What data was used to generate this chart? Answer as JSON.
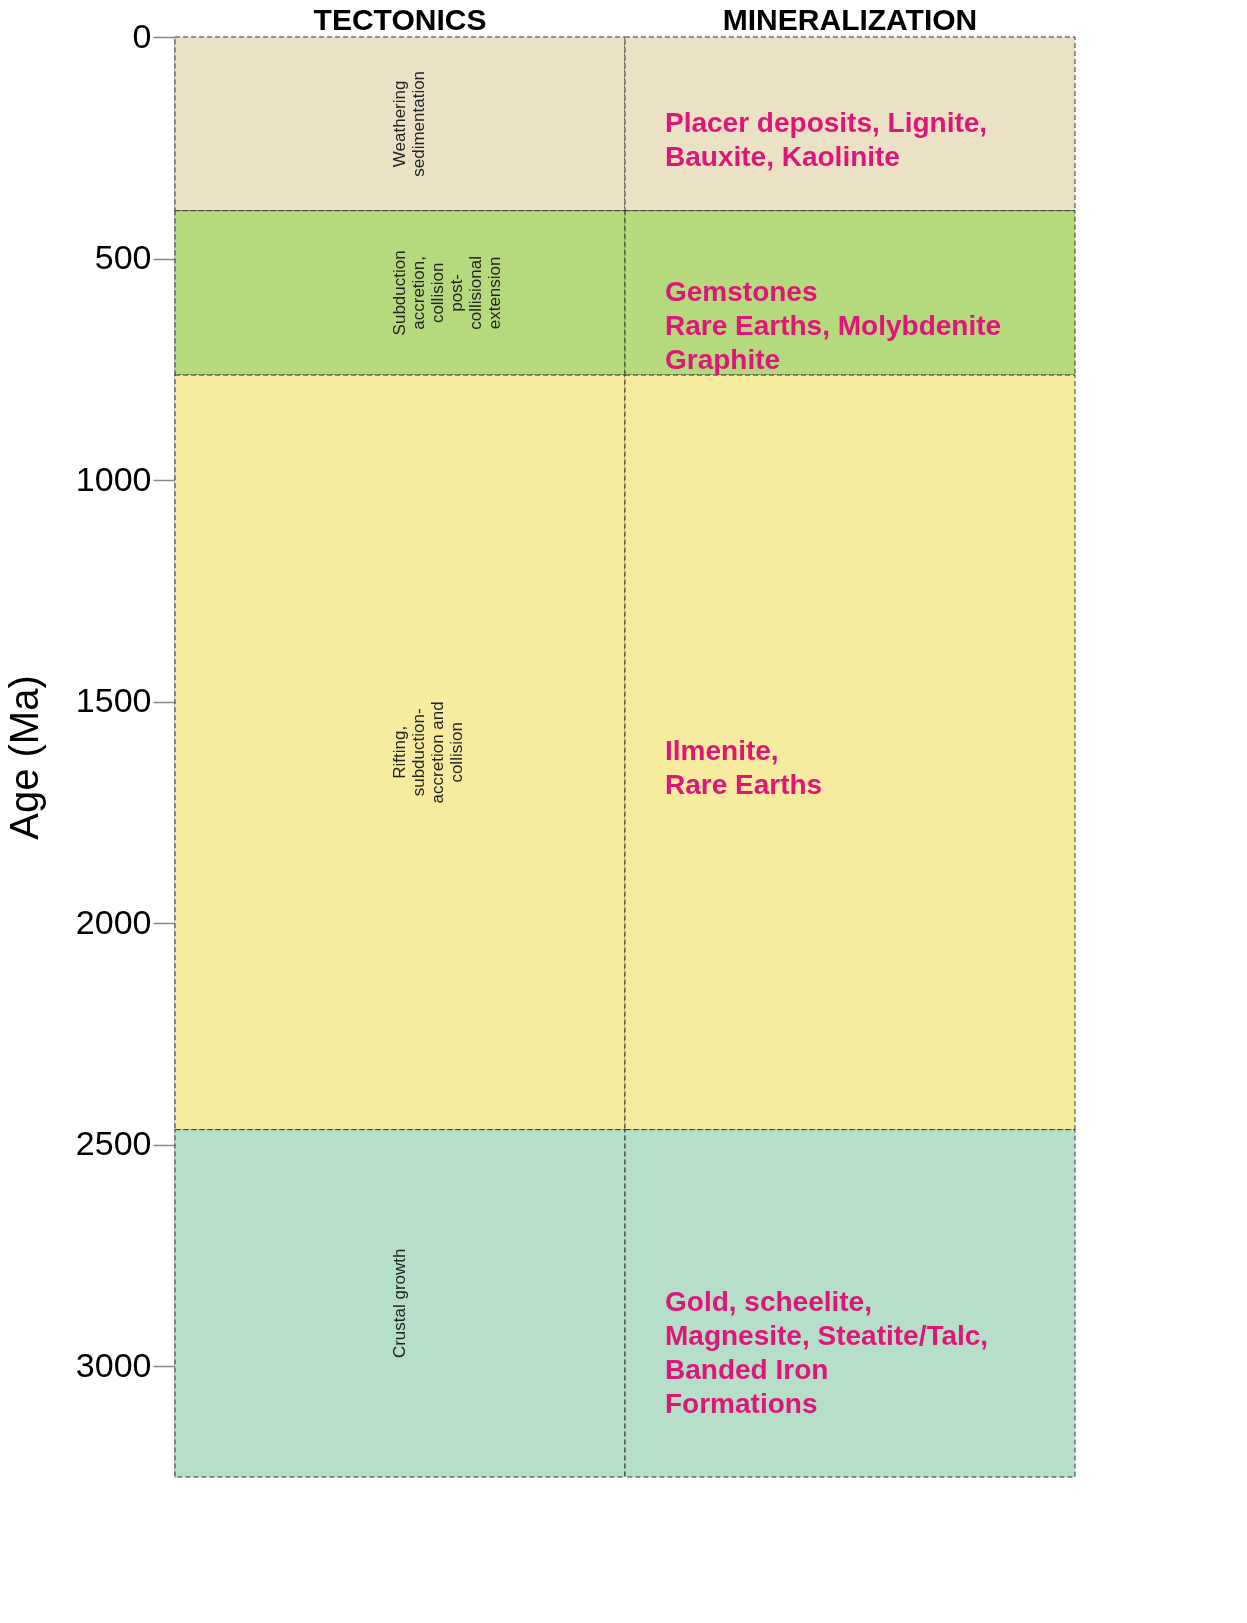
{
  "chart_data": {
    "type": "bar",
    "stacked": true,
    "ylabel": "Age (Ma)",
    "categories": [
      "TECTONICS",
      "MINERALIZATION"
    ],
    "ylim": [
      3250,
      0
    ],
    "yticks": [
      0,
      500,
      1000,
      1500,
      2000,
      2500,
      3000
    ],
    "grid": false,
    "series": [
      {
        "color": "#ebe2c5",
        "values": [
          392,
          392
        ]
      },
      {
        "color": "#b5d97d",
        "values": [
          371,
          371
        ]
      },
      {
        "color": "#f6eb9e",
        "values": [
          1703,
          1703
        ]
      },
      {
        "color": "#b5dfc9",
        "values": [
          784,
          784
        ]
      }
    ],
    "annotations": [
      "Weathering\nsedimentation",
      "Subduction\naccretion,\ncollision\npost-\ncollisional\nextension",
      "Rifting,\nsubduction-\naccretion and\ncollision",
      "Crustal growth",
      "Placer deposits, Lignite,\nBauxite, Kaolinite",
      "Gemstones\nRare Earths, Molybdenite\nGraphite",
      "Ilmenite,\nRare Earths",
      "Gold, scheelite,\nMagnesite, Steatite/Talc,\nBanded Iron\nFormations"
    ]
  }
}
